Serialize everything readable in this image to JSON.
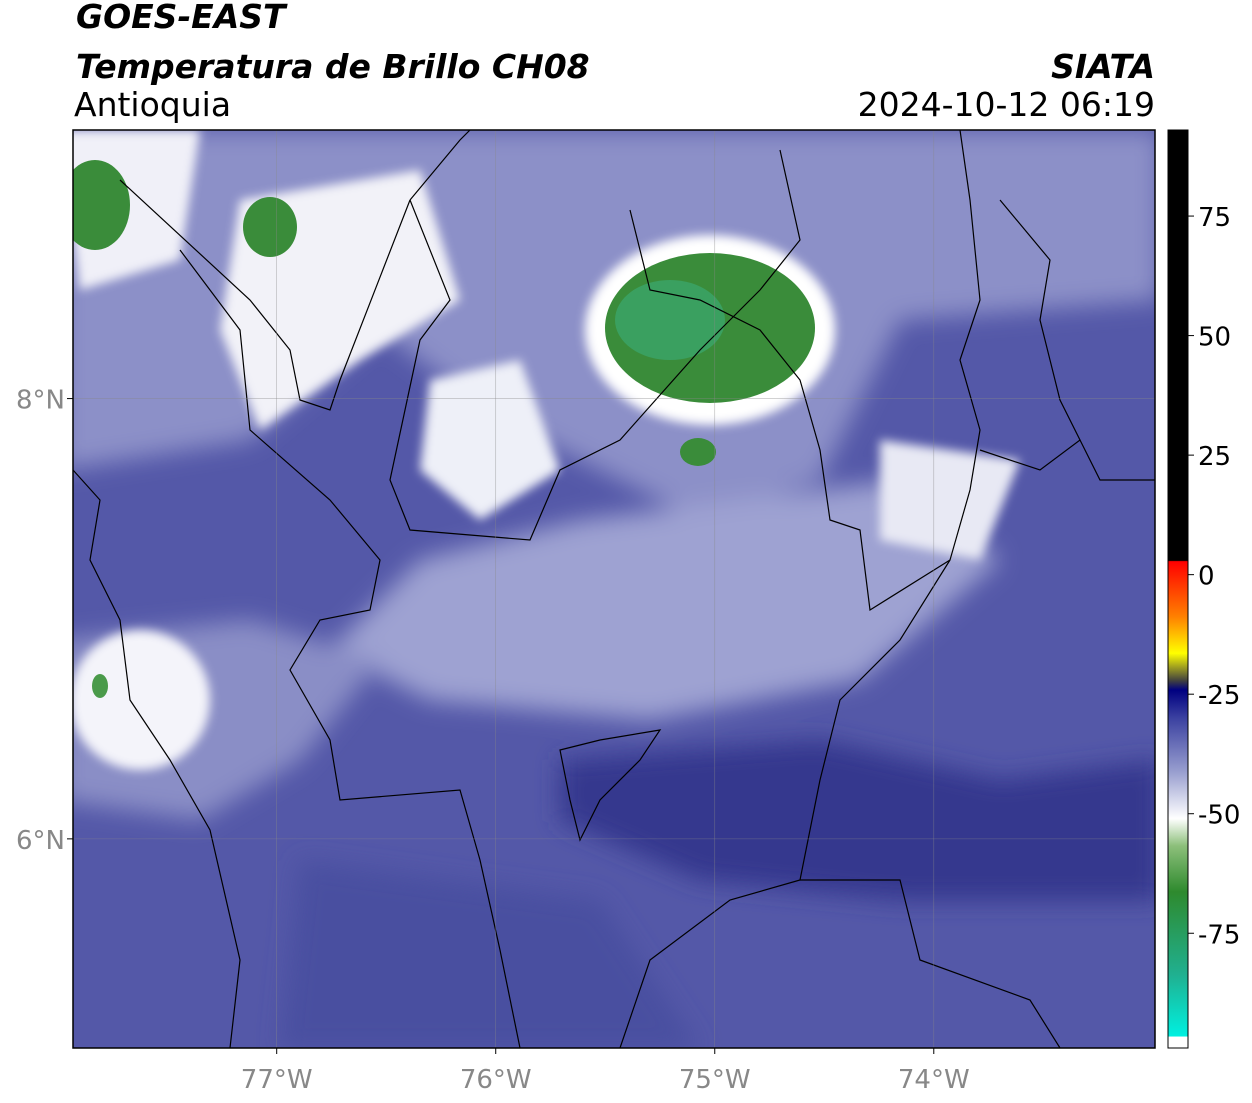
{
  "header": {
    "title": "GOES-EAST",
    "subtitle": "Temperatura de Brillo CH08",
    "region": "Antioquia",
    "source": "SIATA",
    "datetime": "2024-10-12 06:19"
  },
  "map": {
    "xlim": [
      -77.93,
      -72.99
    ],
    "ylim": [
      5.05,
      9.22
    ],
    "xticks": [
      {
        "value": -77,
        "label": "77°W"
      },
      {
        "value": -76,
        "label": "76°W"
      },
      {
        "value": -75,
        "label": "75°W"
      },
      {
        "value": -74,
        "label": "74°W"
      }
    ],
    "yticks": [
      {
        "value": 8,
        "label": "8°N"
      },
      {
        "value": 6,
        "label": "6°N"
      }
    ]
  },
  "colorbar": {
    "lim": [
      -99,
      93
    ],
    "ticks": [
      75,
      50,
      25,
      0,
      -25,
      -50,
      -75
    ]
  }
}
